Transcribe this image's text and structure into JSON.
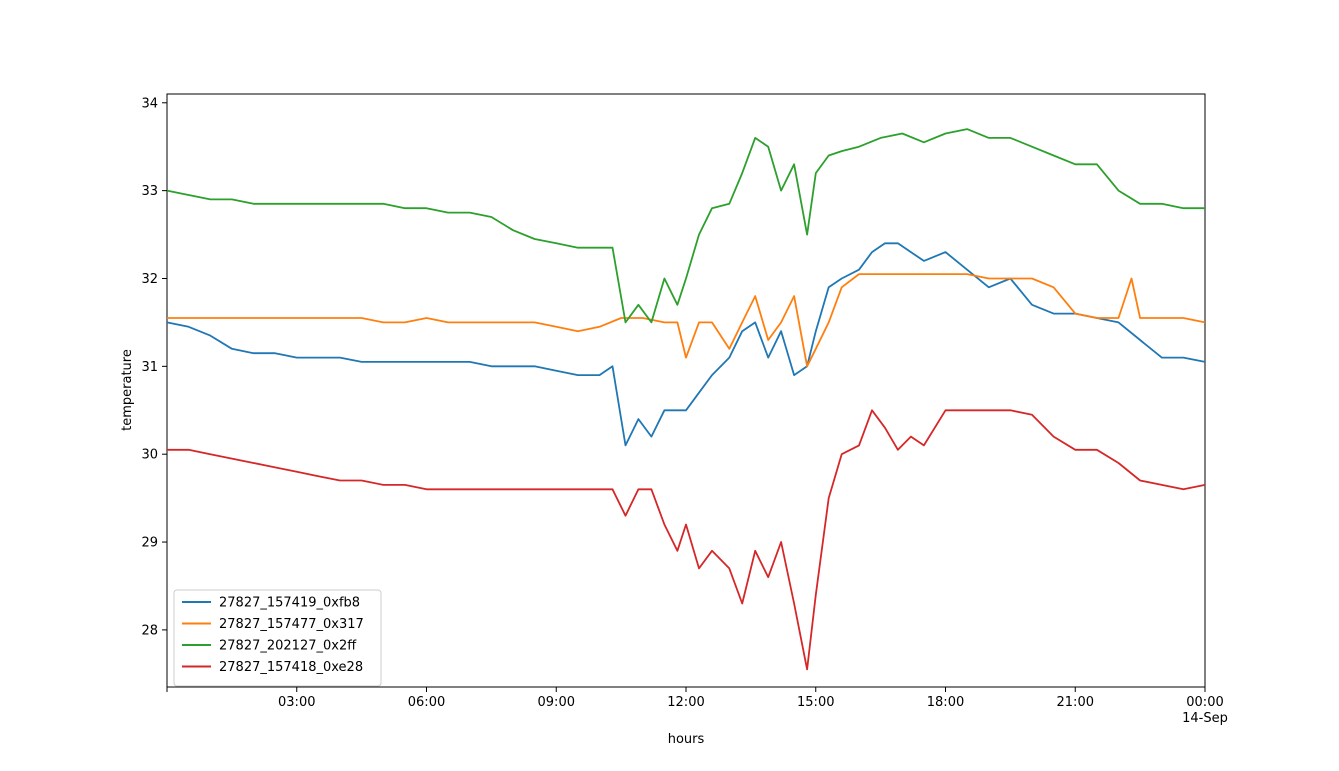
{
  "chart_data": {
    "type": "line",
    "title": "",
    "xlabel": "hours",
    "ylabel": "temperature",
    "xlim": [
      0.0,
      24.0
    ],
    "ylim": [
      27.35,
      34.1
    ],
    "x_ticks": [
      {
        "x": 3,
        "label": "03:00",
        "sublabel": ""
      },
      {
        "x": 6,
        "label": "06:00",
        "sublabel": ""
      },
      {
        "x": 9,
        "label": "09:00",
        "sublabel": ""
      },
      {
        "x": 12,
        "label": "12:00",
        "sublabel": ""
      },
      {
        "x": 15,
        "label": "15:00",
        "sublabel": ""
      },
      {
        "x": 18,
        "label": "18:00",
        "sublabel": ""
      },
      {
        "x": 21,
        "label": "21:00",
        "sublabel": ""
      },
      {
        "x": 24,
        "label": "00:00",
        "sublabel": "14-Sep"
      }
    ],
    "y_ticks": [
      28,
      29,
      30,
      31,
      32,
      33,
      34
    ],
    "legend_position": "lower-left",
    "grid": false,
    "series": [
      {
        "name": "27827_157419_0xfb8",
        "color": "#1f77b4",
        "x": [
          0,
          0.5,
          1,
          1.5,
          2,
          2.5,
          3,
          3.5,
          4,
          4.5,
          5,
          5.5,
          6,
          6.5,
          7,
          7.5,
          8,
          8.5,
          9,
          9.5,
          10,
          10.3,
          10.6,
          10.9,
          11.2,
          11.5,
          11.8,
          12,
          12.3,
          12.6,
          13,
          13.3,
          13.6,
          13.9,
          14.2,
          14.5,
          14.8,
          15,
          15.3,
          15.6,
          16,
          16.3,
          16.6,
          16.9,
          17.2,
          17.5,
          18,
          18.5,
          19,
          19.5,
          20,
          20.5,
          21,
          21.5,
          22,
          22.5,
          23,
          23.5,
          24
        ],
        "y": [
          31.5,
          31.45,
          31.35,
          31.2,
          31.15,
          31.15,
          31.1,
          31.1,
          31.1,
          31.05,
          31.05,
          31.05,
          31.05,
          31.05,
          31.05,
          31.0,
          31.0,
          31.0,
          30.95,
          30.9,
          30.9,
          31.0,
          30.1,
          30.4,
          30.2,
          30.5,
          30.5,
          30.5,
          30.7,
          30.9,
          31.1,
          31.4,
          31.5,
          31.1,
          31.4,
          30.9,
          31.0,
          31.4,
          31.9,
          32.0,
          32.1,
          32.3,
          32.4,
          32.4,
          32.3,
          32.2,
          32.3,
          32.1,
          31.9,
          32.0,
          31.7,
          31.6,
          31.6,
          31.55,
          31.5,
          31.3,
          31.1,
          31.1,
          31.05
        ]
      },
      {
        "name": "27827_157477_0x317",
        "color": "#ff7f0e",
        "x": [
          0,
          0.5,
          1,
          1.5,
          2,
          2.5,
          3,
          3.5,
          4,
          4.5,
          5,
          5.5,
          6,
          6.5,
          7,
          7.5,
          8,
          8.5,
          9,
          9.5,
          10,
          10.5,
          11,
          11.5,
          11.8,
          12,
          12.3,
          12.6,
          13,
          13.3,
          13.6,
          13.9,
          14.2,
          14.5,
          14.8,
          15,
          15.3,
          15.6,
          16,
          16.5,
          17,
          17.5,
          18,
          18.5,
          19,
          19.5,
          20,
          20.5,
          21,
          21.5,
          22,
          22.3,
          22.5,
          23,
          23.5,
          24
        ],
        "y": [
          31.55,
          31.55,
          31.55,
          31.55,
          31.55,
          31.55,
          31.55,
          31.55,
          31.55,
          31.55,
          31.5,
          31.5,
          31.55,
          31.5,
          31.5,
          31.5,
          31.5,
          31.5,
          31.45,
          31.4,
          31.45,
          31.55,
          31.55,
          31.5,
          31.5,
          31.1,
          31.5,
          31.5,
          31.2,
          31.5,
          31.8,
          31.3,
          31.5,
          31.8,
          31.0,
          31.2,
          31.5,
          31.9,
          32.05,
          32.05,
          32.05,
          32.05,
          32.05,
          32.05,
          32.0,
          32.0,
          32.0,
          31.9,
          31.6,
          31.55,
          31.55,
          32.0,
          31.55,
          31.55,
          31.55,
          31.5
        ]
      },
      {
        "name": "27827_202127_0x2ff",
        "color": "#2ca02c",
        "x": [
          0,
          0.5,
          1,
          1.5,
          2,
          2.5,
          3,
          3.5,
          4,
          4.5,
          5,
          5.5,
          6,
          6.5,
          7,
          7.5,
          8,
          8.5,
          9,
          9.5,
          10,
          10.3,
          10.6,
          10.9,
          11.2,
          11.5,
          11.8,
          12,
          12.3,
          12.6,
          13,
          13.3,
          13.6,
          13.9,
          14.2,
          14.5,
          14.8,
          15,
          15.3,
          15.6,
          16,
          16.5,
          17,
          17.5,
          18,
          18.5,
          19,
          19.5,
          20,
          20.5,
          21,
          21.5,
          22,
          22.5,
          23,
          23.5,
          24
        ],
        "y": [
          33.0,
          32.95,
          32.9,
          32.9,
          32.85,
          32.85,
          32.85,
          32.85,
          32.85,
          32.85,
          32.85,
          32.8,
          32.8,
          32.75,
          32.75,
          32.7,
          32.55,
          32.45,
          32.4,
          32.35,
          32.35,
          32.35,
          31.5,
          31.7,
          31.5,
          32.0,
          31.7,
          32.0,
          32.5,
          32.8,
          32.85,
          33.2,
          33.6,
          33.5,
          33.0,
          33.3,
          32.5,
          33.2,
          33.4,
          33.45,
          33.5,
          33.6,
          33.65,
          33.55,
          33.65,
          33.7,
          33.6,
          33.6,
          33.5,
          33.4,
          33.3,
          33.3,
          33.0,
          32.85,
          32.85,
          32.8,
          32.8
        ]
      },
      {
        "name": "27827_157418_0xe28",
        "color": "#d62728",
        "x": [
          0,
          0.5,
          1,
          1.5,
          2,
          2.5,
          3,
          3.5,
          4,
          4.5,
          5,
          5.5,
          6,
          6.5,
          7,
          7.5,
          8,
          8.5,
          9,
          9.5,
          10,
          10.3,
          10.6,
          10.9,
          11.2,
          11.5,
          11.8,
          12,
          12.3,
          12.6,
          13,
          13.3,
          13.6,
          13.9,
          14.2,
          14.5,
          14.8,
          15,
          15.3,
          15.6,
          16,
          16.3,
          16.6,
          16.9,
          17.2,
          17.5,
          18,
          18.5,
          19,
          19.5,
          20,
          20.5,
          21,
          21.5,
          22,
          22.5,
          23,
          23.5,
          24
        ],
        "y": [
          30.05,
          30.05,
          30.0,
          29.95,
          29.9,
          29.85,
          29.8,
          29.75,
          29.7,
          29.7,
          29.65,
          29.65,
          29.6,
          29.6,
          29.6,
          29.6,
          29.6,
          29.6,
          29.6,
          29.6,
          29.6,
          29.6,
          29.3,
          29.6,
          29.6,
          29.2,
          28.9,
          29.2,
          28.7,
          28.9,
          28.7,
          28.3,
          28.9,
          28.6,
          29.0,
          28.3,
          27.55,
          28.4,
          29.5,
          30.0,
          30.1,
          30.5,
          30.3,
          30.05,
          30.2,
          30.1,
          30.5,
          30.5,
          30.5,
          30.5,
          30.45,
          30.2,
          30.05,
          30.05,
          29.9,
          29.7,
          29.65,
          29.6,
          29.65
        ]
      }
    ]
  }
}
